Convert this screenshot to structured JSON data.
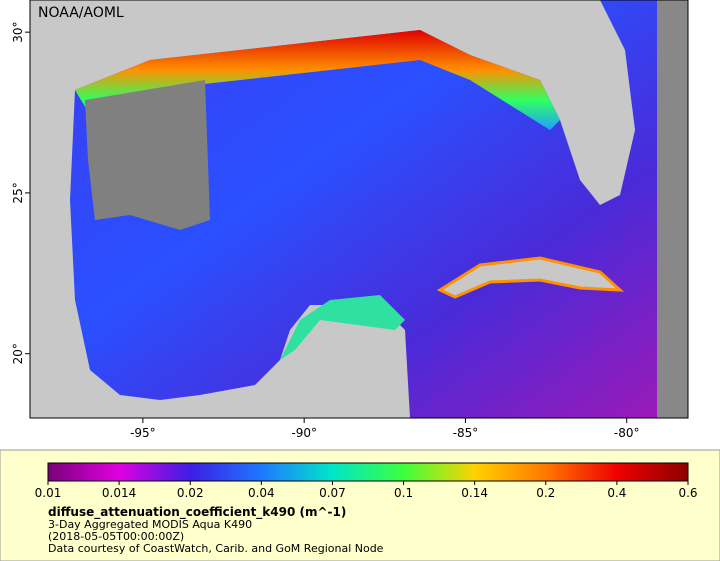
{
  "map": {
    "credit": "NOAA/AOML",
    "xlim": [
      -98.5,
      -78.1
    ],
    "ylim": [
      18,
      31
    ],
    "xticks": [
      {
        "value": -95,
        "label": "-95°"
      },
      {
        "value": -90,
        "label": "-90°"
      },
      {
        "value": -85,
        "label": "-85°"
      },
      {
        "value": -80,
        "label": "-80°"
      }
    ],
    "yticks": [
      {
        "value": 30,
        "label": "30°"
      },
      {
        "value": 25,
        "label": "25°"
      },
      {
        "value": 20,
        "label": "20°"
      }
    ]
  },
  "legend": {
    "colorbar_ticks": [
      0.01,
      0.014,
      0.02,
      0.04,
      0.07,
      0.1,
      0.14,
      0.2,
      0.4,
      0.6
    ],
    "colors": [
      "#7a007a",
      "#e000e0",
      "#3c1ee6",
      "#1e78ff",
      "#00e6c8",
      "#3cff3c",
      "#ffd200",
      "#ff7800",
      "#f00000",
      "#8c0000"
    ],
    "title": "diffuse_attenuation_coefficient_k490 (m^-1)",
    "lines": [
      "3-Day Aggregated MODIS Aqua K490",
      "(2018-05-05T00:00:00Z)",
      "Data courtesy of CoastWatch, Carib. and GoM Regional Node"
    ]
  }
}
